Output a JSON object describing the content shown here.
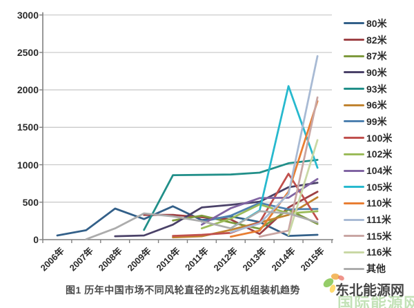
{
  "figure": {
    "caption": "图1 历年中国市场不同风轮直径的2兆瓦机组装机趋势",
    "watermark_front": "东北能源网",
    "watermark_back": "国际能源网"
  },
  "chart_data": {
    "type": "line",
    "title": "",
    "xlabel": "",
    "ylabel": "",
    "x": [
      "2006年",
      "2007年",
      "2008年",
      "2009年",
      "2010年",
      "2011年",
      "2012年",
      "2013年",
      "2014年",
      "2015年"
    ],
    "ylim": [
      0,
      3000
    ],
    "ytick_step": 500,
    "yticks": [
      0,
      500,
      1000,
      1500,
      2000,
      2500,
      3000
    ],
    "grid": true,
    "legend_position": "right",
    "series": [
      {
        "name": "80米",
        "color": "#336089",
        "values": [
          55,
          125,
          415,
          275,
          445,
          260,
          310,
          235,
          50,
          65
        ]
      },
      {
        "name": "82米",
        "color": "#9e4145",
        "values": [
          null,
          null,
          null,
          330,
          330,
          300,
          270,
          75,
          430,
          640
        ]
      },
      {
        "name": "87米",
        "color": "#7e9a3d",
        "values": [
          null,
          null,
          null,
          null,
          255,
          320,
          230,
          145,
          400,
          210
        ]
      },
      {
        "name": "90米",
        "color": "#4a4168",
        "values": [
          null,
          null,
          45,
          55,
          200,
          430,
          465,
          505,
          700,
          760
        ]
      },
      {
        "name": "93米",
        "color": "#218f89",
        "values": [
          null,
          null,
          null,
          130,
          860,
          865,
          870,
          895,
          1020,
          1065
        ]
      },
      {
        "name": "96米",
        "color": "#c08330",
        "values": [
          null,
          null,
          null,
          null,
          30,
          45,
          130,
          230,
          330,
          565
        ]
      },
      {
        "name": "99米",
        "color": "#4e81b0",
        "values": [
          null,
          null,
          null,
          null,
          null,
          240,
          320,
          490,
          405,
          410
        ]
      },
      {
        "name": "100米",
        "color": "#c0504d",
        "values": [
          null,
          null,
          null,
          null,
          50,
          65,
          90,
          230,
          880,
          270
        ]
      },
      {
        "name": "102米",
        "color": "#9bbb59",
        "values": [
          null,
          null,
          null,
          null,
          null,
          150,
          280,
          470,
          350,
          380
        ]
      },
      {
        "name": "104米",
        "color": "#8064a2",
        "values": [
          null,
          null,
          null,
          null,
          null,
          200,
          420,
          555,
          560,
          810
        ]
      },
      {
        "name": "105米",
        "color": "#27b9ce",
        "values": [
          null,
          null,
          null,
          null,
          null,
          null,
          150,
          390,
          2050,
          960
        ]
      },
      {
        "name": "110米",
        "color": "#e87e33",
        "values": [
          null,
          null,
          null,
          null,
          null,
          null,
          40,
          120,
          640,
          1850
        ]
      },
      {
        "name": "111米",
        "color": "#a8bad4",
        "values": [
          null,
          null,
          null,
          null,
          null,
          null,
          100,
          215,
          610,
          2450
        ]
      },
      {
        "name": "115米",
        "color": "#c9a6a3",
        "values": [
          null,
          null,
          null,
          null,
          null,
          null,
          null,
          40,
          120,
          1900
        ]
      },
      {
        "name": "116米",
        "color": "#c9d8a5",
        "values": [
          null,
          null,
          null,
          null,
          null,
          null,
          null,
          null,
          60,
          1330
        ]
      },
      {
        "name": "其他",
        "color": "#acacac",
        "values": [
          null,
          5,
          150,
          350,
          310,
          245,
          150,
          380,
          350,
          230
        ]
      }
    ]
  }
}
